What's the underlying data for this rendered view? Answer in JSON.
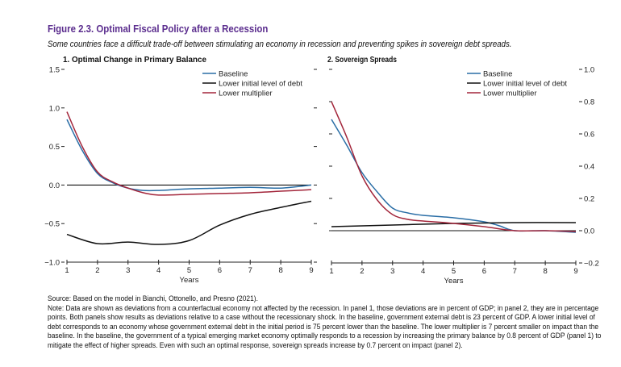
{
  "figure": {
    "title": "Figure 2.3. Optimal Fiscal Policy after a Recession",
    "subtitle": "Some countries face a difficult trade-off between stimulating an economy in recession and preventing spikes in sovereign debt spreads.",
    "source": "Source: Based on the model in Bianchi, Ottonello, and Presno (2021).",
    "note": "Note: Data are shown as deviations from a counterfactual economy not affected by the recession. In panel 1, those deviations are in percent of GDP; in panel 2, they are in percentage points. Both panels show results as deviations relative to a case without the recessionary shock. In the baseline, government external debt is 23 percent of GDP. A lower initial level of debt corresponds to an economy whose government external debt in the initial period is 75 percent lower than the baseline. The lower multiplier is 7 percent smaller on impact than the baseline. In the baseline, the government of a typical emerging market economy optimally responds to a recession by increasing the primary balance by 0.8 percent of GDP (panel 1) to mitigate the effect of higher spreads. Even with such an optimal response, sovereign spreads increase by 0.7 percent on impact (panel 2).",
    "colors": {
      "title": "#5b2d8e",
      "Baseline": "#2a6ea6",
      "Lower initial level of debt": "#111111",
      "Lower multiplier": "#a3263b"
    }
  },
  "chart_data": [
    {
      "type": "line",
      "title": "1. Optimal Change in Primary Balance",
      "xlabel": "Years",
      "ylabel": "",
      "xlim": [
        1,
        9
      ],
      "ylim": [
        -1.0,
        1.5
      ],
      "xticks": [
        "1",
        "2",
        "3",
        "4",
        "5",
        "6",
        "7",
        "8",
        "9"
      ],
      "yticks": [
        "1.5",
        "1.0",
        "0.5",
        "0.0",
        "−0.5",
        "−1.0"
      ],
      "ytick_values": [
        1.5,
        1.0,
        0.5,
        0.0,
        -0.5,
        -1.0
      ],
      "y_axis_side": "left",
      "zero_line": true,
      "legend": "top-right",
      "series": [
        {
          "name": "Baseline",
          "x": [
            1,
            1.5,
            2,
            2.5,
            3,
            3.5,
            4,
            5,
            6,
            7,
            8,
            9
          ],
          "y": [
            0.85,
            0.45,
            0.15,
            0.03,
            -0.04,
            -0.07,
            -0.07,
            -0.05,
            -0.04,
            -0.03,
            -0.04,
            0.0
          ]
        },
        {
          "name": "Lower initial level of debt",
          "x": [
            1,
            2,
            3,
            4,
            5,
            6,
            7,
            8,
            9
          ],
          "y": [
            -0.64,
            -0.76,
            -0.74,
            -0.77,
            -0.72,
            -0.52,
            -0.38,
            -0.29,
            -0.21
          ]
        },
        {
          "name": "Lower multiplier",
          "x": [
            1,
            1.5,
            2,
            2.5,
            3,
            3.5,
            4,
            5,
            6,
            7,
            8,
            9
          ],
          "y": [
            0.95,
            0.5,
            0.17,
            0.04,
            -0.04,
            -0.1,
            -0.13,
            -0.12,
            -0.11,
            -0.1,
            -0.08,
            -0.06
          ]
        }
      ]
    },
    {
      "type": "line",
      "title": "2. Sovereign Spreads",
      "xlabel": "Years",
      "ylabel": "",
      "xlim": [
        1,
        9
      ],
      "ylim": [
        -0.2,
        1.0
      ],
      "xticks": [
        "1",
        "2",
        "3",
        "4",
        "5",
        "6",
        "7",
        "8",
        "9"
      ],
      "yticks": [
        "1.0",
        "0.8",
        "0.6",
        "0.4",
        "0.2",
        "0.0",
        "−0.2"
      ],
      "ytick_values": [
        1.0,
        0.8,
        0.6,
        0.4,
        0.2,
        0.0,
        -0.2
      ],
      "y_axis_side": "right",
      "zero_line": true,
      "legend": "top-right",
      "series": [
        {
          "name": "Baseline",
          "x": [
            1,
            1.5,
            2,
            2.5,
            3,
            3.5,
            4,
            5,
            6,
            6.5,
            7,
            8,
            9
          ],
          "y": [
            0.69,
            0.53,
            0.36,
            0.24,
            0.14,
            0.11,
            0.095,
            0.08,
            0.055,
            0.03,
            0.0,
            0.0,
            -0.01
          ]
        },
        {
          "name": "Lower initial level of debt",
          "x": [
            1,
            3,
            5,
            7,
            9
          ],
          "y": [
            0.025,
            0.035,
            0.045,
            0.05,
            0.05
          ]
        },
        {
          "name": "Lower multiplier",
          "x": [
            1,
            1.5,
            2,
            2.5,
            3,
            3.5,
            4,
            5,
            6,
            7,
            8,
            9
          ],
          "y": [
            0.8,
            0.58,
            0.34,
            0.19,
            0.1,
            0.07,
            0.06,
            0.045,
            0.025,
            0.0,
            0.0,
            -0.005
          ]
        }
      ]
    }
  ]
}
